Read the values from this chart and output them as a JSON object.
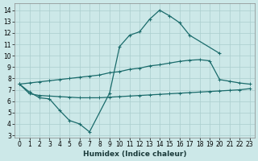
{
  "xlabel": "Humidex (Indice chaleur)",
  "background_color": "#cce8e8",
  "grid_color": "#aacece",
  "line_color": "#1a6b6b",
  "xlim": [
    -0.5,
    23.5
  ],
  "ylim": [
    2.8,
    14.6
  ],
  "yticks": [
    3,
    4,
    5,
    6,
    7,
    8,
    9,
    10,
    11,
    12,
    13,
    14
  ],
  "xticks": [
    0,
    1,
    2,
    3,
    4,
    5,
    6,
    7,
    8,
    9,
    10,
    11,
    12,
    13,
    14,
    15,
    16,
    17,
    18,
    19,
    20,
    21,
    22,
    23
  ],
  "line_main_x": [
    0,
    1,
    2,
    3,
    4,
    5,
    6,
    7,
    9,
    10,
    11,
    12,
    13,
    14,
    15,
    16,
    17,
    20
  ],
  "line_main_y": [
    7.5,
    6.8,
    6.3,
    6.2,
    5.2,
    4.3,
    4.0,
    3.3,
    6.7,
    10.8,
    11.8,
    12.1,
    13.2,
    14.0,
    13.5,
    12.9,
    11.8,
    10.2
  ],
  "line_upper_x": [
    0,
    1,
    2,
    3,
    4,
    5,
    6,
    7,
    8,
    9,
    10,
    11,
    12,
    13,
    14,
    15,
    16,
    17,
    18,
    19,
    20,
    21,
    22,
    23
  ],
  "line_upper_y": [
    7.5,
    7.6,
    7.7,
    7.8,
    7.9,
    8.0,
    8.1,
    8.2,
    8.3,
    8.5,
    8.6,
    8.8,
    8.9,
    9.1,
    9.2,
    9.35,
    9.5,
    9.6,
    9.65,
    9.55,
    7.9,
    7.75,
    7.6,
    7.5
  ],
  "line_lower_x": [
    0,
    1,
    2,
    3,
    4,
    5,
    6,
    7,
    8,
    9,
    10,
    11,
    12,
    13,
    14,
    15,
    16,
    17,
    18,
    19,
    20,
    21,
    22,
    23
  ],
  "line_lower_y": [
    7.5,
    6.65,
    6.5,
    6.45,
    6.4,
    6.35,
    6.3,
    6.3,
    6.3,
    6.35,
    6.4,
    6.45,
    6.5,
    6.55,
    6.6,
    6.65,
    6.7,
    6.75,
    6.8,
    6.85,
    6.9,
    6.95,
    7.0,
    7.1
  ]
}
